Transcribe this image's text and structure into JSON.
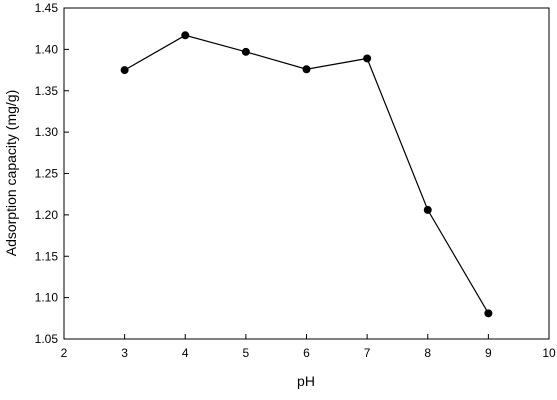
{
  "chart_data": {
    "type": "line",
    "x_label": "pH",
    "y_label": "Adsorption capacity (mg/g)",
    "x": [
      3,
      4,
      5,
      6,
      7,
      8,
      9
    ],
    "series": [
      {
        "name": "Adsorption capacity",
        "color": "#000000",
        "values": [
          1.375,
          1.417,
          1.397,
          1.376,
          1.389,
          1.206,
          1.081
        ]
      }
    ],
    "xlim": [
      2,
      10
    ],
    "xticks": [
      2,
      3,
      4,
      5,
      6,
      7,
      8,
      9,
      10
    ],
    "ylim": [
      1.05,
      1.45
    ],
    "yticks": [
      1.05,
      {
        "value": 1.1,
        "label": "1.10"
      },
      1.15,
      {
        "value": 1.2,
        "label": "1.20"
      },
      1.25,
      {
        "value": 1.3,
        "label": "1.30"
      },
      1.35,
      {
        "value": 1.4,
        "label": "1.40"
      },
      1.45
    ]
  }
}
